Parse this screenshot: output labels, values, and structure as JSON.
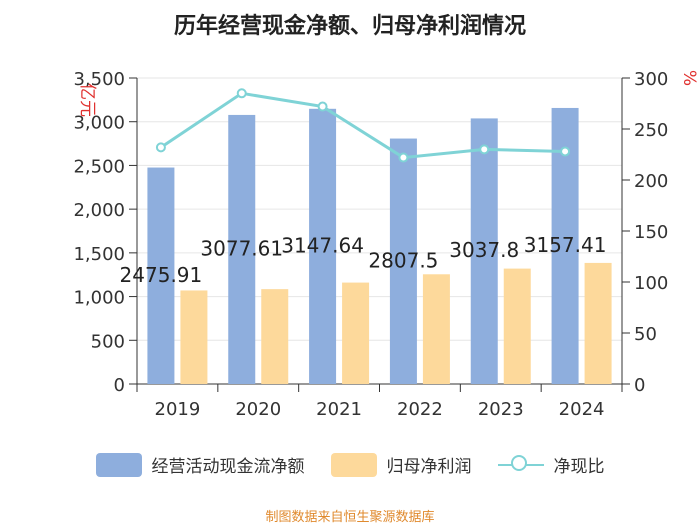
{
  "title": "历年经营现金净额、归母净利润情况",
  "source": "制图数据来自恒生聚源数据库",
  "colors": {
    "bar1": "#8eaedd",
    "bar2": "#fdd99b",
    "line": "#7fd3d6",
    "axis": "#333333",
    "grid": "#e6e6e6",
    "unit_label": "#e0312f"
  },
  "legend": {
    "series1": "经营活动现金流净额",
    "series2": "归母净利润",
    "series3": "净现比"
  },
  "chart_data": {
    "type": "bar",
    "title": "历年经营现金净额、归母净利润情况",
    "categories": [
      "2019",
      "2020",
      "2021",
      "2022",
      "2023",
      "2024"
    ],
    "series": [
      {
        "name": "经营活动现金流净额",
        "type": "bar",
        "axis": "left",
        "values": [
          2475.91,
          3077.61,
          3147.64,
          2807.5,
          3037.8,
          3157.41
        ],
        "labels": [
          "2475.91",
          "3077.61",
          "3147.64",
          "2807.5",
          "3037.8",
          "3157.41"
        ]
      },
      {
        "name": "归母净利润",
        "type": "bar",
        "axis": "left",
        "values": [
          1070,
          1085,
          1160,
          1255,
          1320,
          1385
        ]
      },
      {
        "name": "净现比",
        "type": "line",
        "axis": "right",
        "values": [
          232,
          285,
          272,
          222,
          230,
          228
        ]
      }
    ],
    "y_left": {
      "label": "亿元",
      "min": 0,
      "max": 3500,
      "ticks": [
        "0",
        "500",
        "1,000",
        "1,500",
        "2,000",
        "2,500",
        "3,000",
        "3,500"
      ]
    },
    "y_right": {
      "label": "%",
      "min": 0,
      "max": 300,
      "ticks": [
        "0",
        "50",
        "100",
        "150",
        "200",
        "250",
        "300"
      ]
    },
    "grid": true
  }
}
